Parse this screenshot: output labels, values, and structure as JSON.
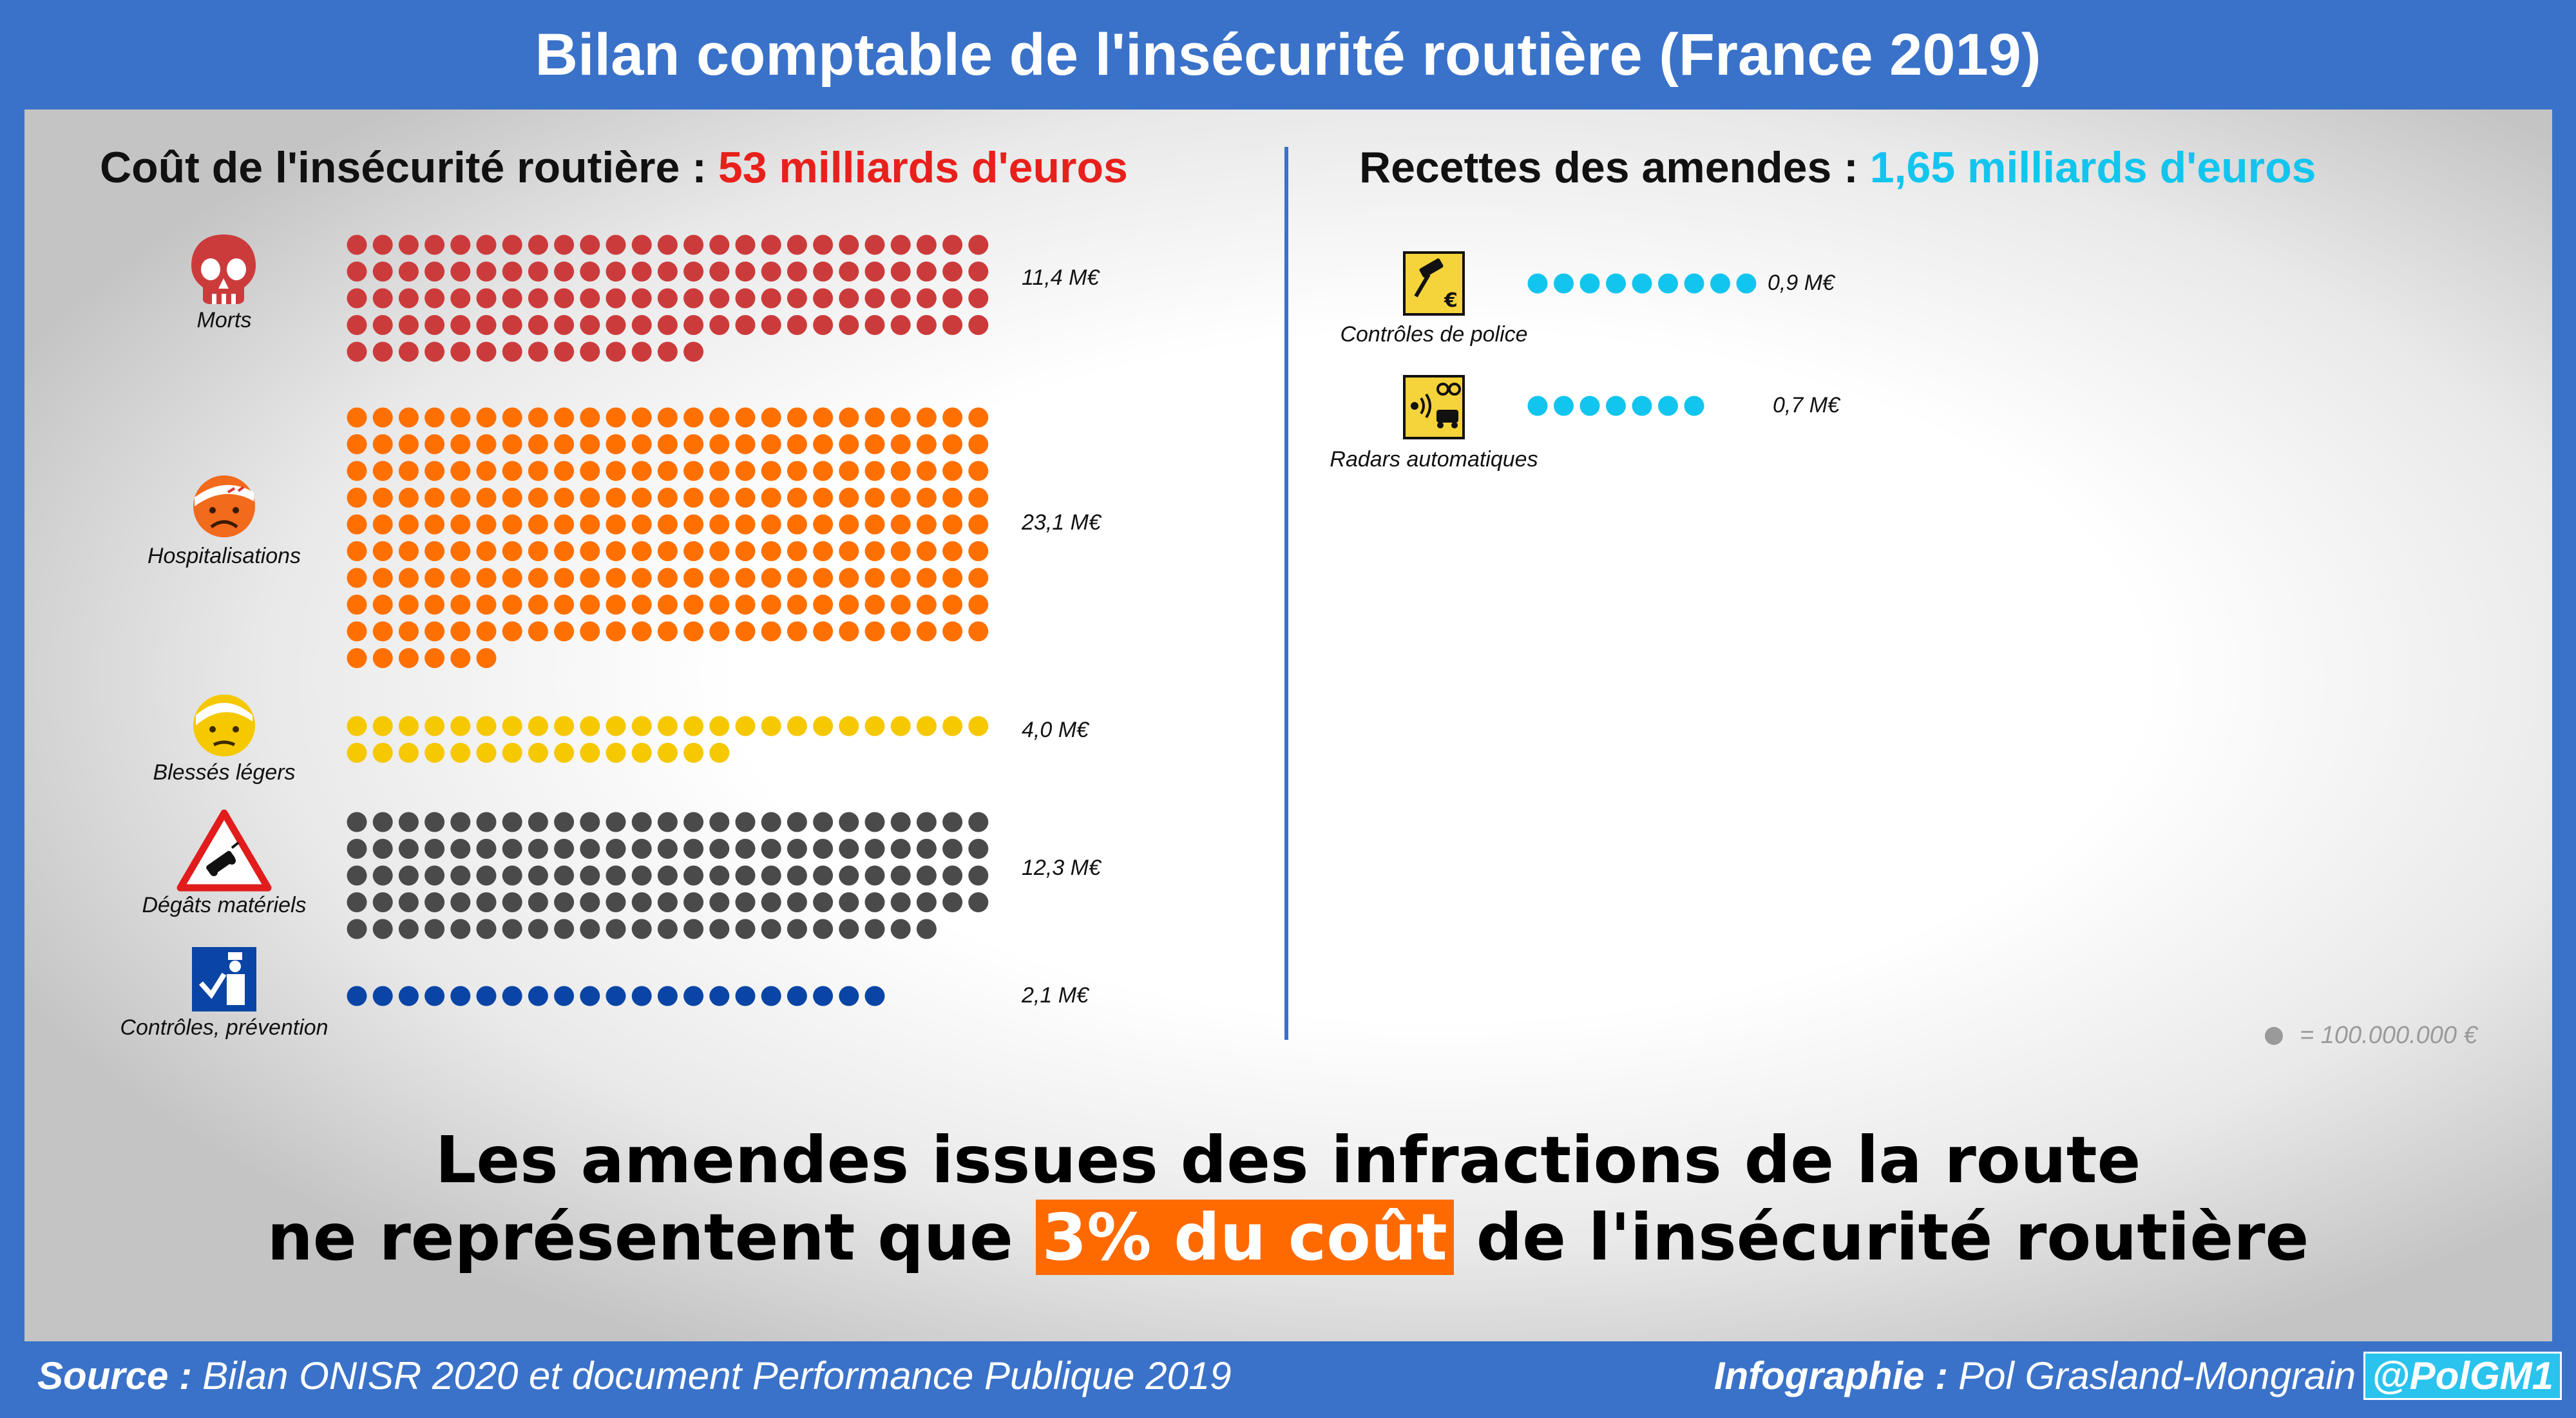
{
  "title": "Bilan comptable de l'insécurité routière (France 2019)",
  "colors": {
    "morts": "#cc3b3b",
    "hospitalisations": "#ff7000",
    "blesses_legers": "#f6c800",
    "degats": "#4a4a4a",
    "controles_prevention": "#0a45a6",
    "recettes": "#12c5ee",
    "highlight_cost": "#e8201b",
    "highlight_recettes": "#12c5ee",
    "highlight_box": "#ff6a00",
    "frame": "#3a72c9"
  },
  "chart_data": [
    {
      "type": "bar",
      "title": "Coût de l'insécurité routière :",
      "title_highlight": "53 milliards d'euros",
      "unit_note": "1 dot = 100.000.000 €",
      "categories": [
        "Morts",
        "Hospitalisations",
        "Blessés légers",
        "Dégâts matériels",
        "Contrôles, prévention"
      ],
      "values": [
        114,
        231,
        40,
        123,
        21
      ],
      "value_labels": [
        "11,4 M€",
        "23,1 M€",
        "4,0 M€",
        "12,3 M€",
        "2,1 M€"
      ],
      "icons": [
        "skull-icon",
        "bandaged-sad-face-icon",
        "bandaged-face-icon",
        "car-accident-warning-icon",
        "police-control-icon"
      ]
    },
    {
      "type": "bar",
      "title": "Recettes des amendes :",
      "title_highlight": "1,65 milliards d'euros",
      "unit_note": "1 dot = 100.000.000 €",
      "categories": [
        "Contrôles de police",
        "Radars automatiques"
      ],
      "values": [
        9,
        7
      ],
      "value_labels": [
        "0,9 M€",
        "0,7 M€"
      ],
      "icons": [
        "gavel-euro-icon",
        "speed-camera-icon"
      ]
    }
  ],
  "legend": "= 100.000.000 €",
  "message": {
    "line1": "Les amendes issues des infractions de la route",
    "line2_before": "ne représentent que",
    "line2_highlight": "3% du coût",
    "line2_after": "de l'insécurité routière"
  },
  "footer": {
    "source_label": "Source :",
    "source_text": "Bilan ONISR 2020 et document Performance Publique 2019",
    "credit_label": "Infographie :",
    "credit_text": "Pol Grasland-Mongrain",
    "handle": "@PolGM1"
  }
}
